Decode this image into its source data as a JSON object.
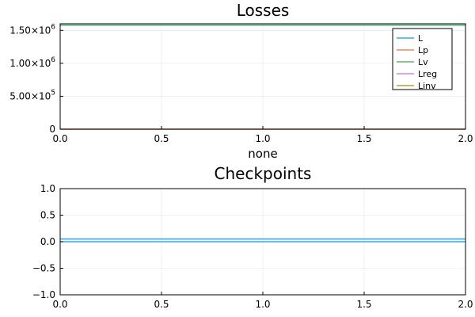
{
  "chart_data": [
    {
      "type": "line",
      "title": "Losses",
      "xlabel": "none",
      "ylabel": "",
      "xlim": [
        0,
        2
      ],
      "ylim": [
        0,
        1600000
      ],
      "x_ticks": [
        0,
        0.5,
        1.0,
        1.5,
        2.0
      ],
      "x_tick_labels": [
        "0.0",
        "0.5",
        "1.0",
        "1.5",
        "2.0"
      ],
      "y_ticks": [
        0,
        500000,
        1000000,
        1500000
      ],
      "y_tick_labels": [
        {
          "mantissa": "0",
          "exponent": ""
        },
        {
          "mantissa": "5.00×10",
          "exponent": "5"
        },
        {
          "mantissa": "1.00×10",
          "exponent": "6"
        },
        {
          "mantissa": "1.50×10",
          "exponent": "6"
        }
      ],
      "grid": true,
      "legend_position": "top-right",
      "series": [
        {
          "name": "L",
          "color": "#009AFA",
          "x": [
            0,
            2
          ],
          "values": [
            1580000,
            1580000
          ]
        },
        {
          "name": "Lp",
          "color": "#E26F46",
          "x": [
            0,
            2
          ],
          "values": [
            0,
            0
          ]
        },
        {
          "name": "Lv",
          "color": "#3EA44E",
          "x": [
            0,
            2
          ],
          "values": [
            1580000,
            1580000
          ]
        },
        {
          "name": "Lreg",
          "color": "#C371D2",
          "x": [
            0,
            2
          ],
          "values": [
            0,
            0
          ]
        },
        {
          "name": "Linv",
          "color": "#AC8E18",
          "x": [
            0,
            2
          ],
          "values": [
            0,
            0
          ]
        }
      ]
    },
    {
      "type": "line",
      "title": "Checkpoints",
      "xlabel": "",
      "ylabel": "",
      "xlim": [
        0,
        2
      ],
      "ylim": [
        -1,
        1
      ],
      "x_ticks": [
        0,
        0.5,
        1.0,
        1.5,
        2.0
      ],
      "x_tick_labels": [
        "0.0",
        "0.5",
        "1.0",
        "1.5",
        "2.0"
      ],
      "y_ticks": [
        -1,
        -0.5,
        0,
        0.5,
        1
      ],
      "y_tick_labels": [
        "−1.0",
        "−0.5",
        "0.0",
        "0.5",
        "1.0"
      ],
      "grid": true,
      "legend_position": "none",
      "series": [
        {
          "color": "#009AFA",
          "x": [
            0,
            2
          ],
          "values": [
            0.05,
            0.05
          ]
        },
        {
          "color": "#009AFA",
          "x": [
            0,
            2
          ],
          "values": [
            0,
            0
          ]
        }
      ]
    }
  ]
}
